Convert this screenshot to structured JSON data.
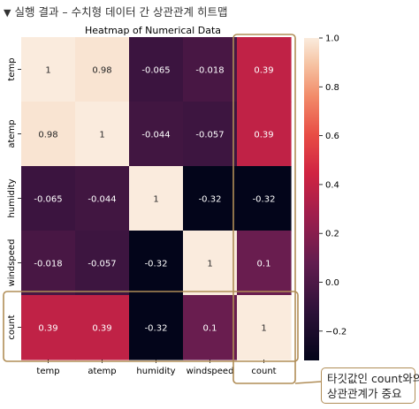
{
  "header": {
    "toggle_icon": "triangle-down-icon",
    "text": "실행 결과 – 수치형 데이터 간 상관관계 히트맵"
  },
  "callout": {
    "line1": "타깃값인 count와의",
    "line2": "상관관계가 중요"
  },
  "colors": {
    "highlight_box": "#b08d57",
    "colormap": "rocket",
    "low": "#03051a",
    "high": "#faebdd"
  },
  "chart_data": {
    "type": "heatmap",
    "title": "Heatmap of Numerical Data",
    "xlabels": [
      "temp",
      "atemp",
      "humidity",
      "windspeed",
      "count"
    ],
    "ylabels": [
      "temp",
      "atemp",
      "humidity",
      "windspeed",
      "count"
    ],
    "values": [
      [
        1,
        0.98,
        -0.065,
        -0.018,
        0.39
      ],
      [
        0.98,
        1,
        -0.044,
        -0.057,
        0.39
      ],
      [
        -0.065,
        -0.044,
        1,
        -0.32,
        -0.32
      ],
      [
        -0.018,
        -0.057,
        -0.32,
        1,
        0.1
      ],
      [
        0.39,
        0.39,
        -0.32,
        0.1,
        1
      ]
    ],
    "annotations": [
      [
        "1",
        "0.98",
        "-0.065",
        "-0.018",
        "0.39"
      ],
      [
        "0.98",
        "1",
        "-0.044",
        "-0.057",
        "0.39"
      ],
      [
        "-0.065",
        "-0.044",
        "1",
        "-0.32",
        "-0.32"
      ],
      [
        "-0.018",
        "-0.057",
        "-0.32",
        "1",
        "0.1"
      ],
      [
        "0.39",
        "0.39",
        "-0.32",
        "0.1",
        "1"
      ]
    ],
    "colorbar": {
      "vmin": -0.32,
      "vmax": 1.0,
      "ticks": [
        1.0,
        0.8,
        0.6,
        0.4,
        0.2,
        0.0,
        -0.2
      ],
      "tick_labels": [
        "1.0",
        "0.8",
        "0.6",
        "0.4",
        "0.2",
        "0.0",
        "−0.2"
      ]
    },
    "highlights": [
      "count column",
      "count row"
    ]
  }
}
